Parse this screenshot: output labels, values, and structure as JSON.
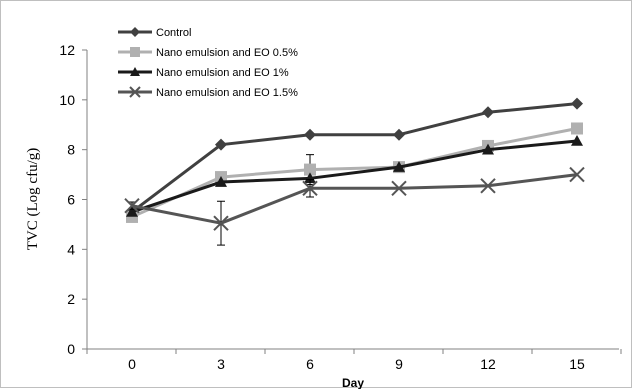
{
  "chart_data": {
    "type": "line",
    "title": "",
    "xlabel": "Day",
    "ylabel": "TVC (Log cfu/g)",
    "x": [
      0,
      3,
      6,
      9,
      12,
      15
    ],
    "xticks": [
      "0",
      "3",
      "6",
      "9",
      "12",
      "15"
    ],
    "yticks": [
      "0",
      "2",
      "4",
      "6",
      "8",
      "10",
      "12"
    ],
    "ylim": [
      0,
      12
    ],
    "grid": false,
    "legend_position": "top-left",
    "series": [
      {
        "name": "Control",
        "values": [
          5.5,
          8.2,
          8.6,
          8.6,
          9.5,
          9.85
        ],
        "color": "#404040",
        "marker": "diamond"
      },
      {
        "name": "Nano emulsion and EO 0.5%",
        "values": [
          5.3,
          6.9,
          7.2,
          7.3,
          8.15,
          8.85
        ],
        "color": "#b0b0b0",
        "marker": "square",
        "error": [
          0,
          0,
          0.6,
          0,
          0,
          0
        ]
      },
      {
        "name": "Nano emulsion and EO 1%",
        "values": [
          5.5,
          6.7,
          6.85,
          7.3,
          8.0,
          8.35
        ],
        "color": "#1a1a1a",
        "marker": "triangle"
      },
      {
        "name": "Nano emulsion and EO 1.5%",
        "values": [
          5.75,
          5.05,
          6.45,
          6.45,
          6.55,
          7.0
        ],
        "color": "#555555",
        "marker": "x",
        "error": [
          0.15,
          0.88,
          0.35,
          0,
          0,
          0
        ]
      }
    ]
  }
}
